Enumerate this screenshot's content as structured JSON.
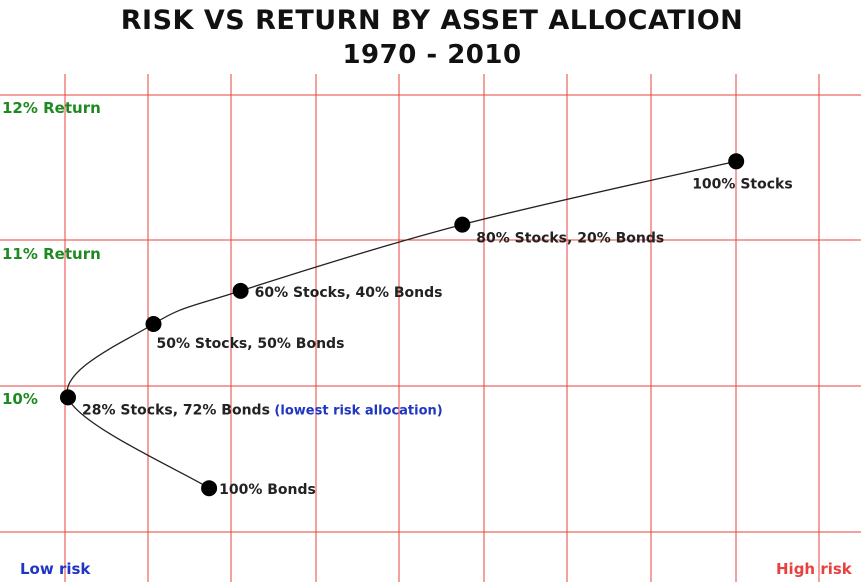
{
  "chart_data": {
    "type": "scatter",
    "title": "Risk vs Return By Asset Allocation",
    "title_display": "RISK VS RETURN BY ASSET ALLOCATION",
    "subtitle": "1970 - 2010",
    "xlabel": "",
    "ylabel": "",
    "x_axis_labels": {
      "low": "Low risk",
      "high": "High risk"
    },
    "y_tick_labels": [
      {
        "value": 12,
        "label": "12% Return"
      },
      {
        "value": 11,
        "label": "11% Return"
      },
      {
        "value": 10,
        "label": "10%"
      }
    ],
    "ylim": [
      9.05,
      12.33
    ],
    "xlim": [
      0.0,
      10.3
    ],
    "grid": true,
    "connecting_curve": true,
    "points": [
      {
        "label": "100% Bonds",
        "note": "",
        "x": 1.7,
        "y": 9.36
      },
      {
        "label": "28% Stocks, 72% Bonds",
        "note": "(lowest risk allocation)",
        "x": 0.0,
        "y": 9.99
      },
      {
        "label": "50% Stocks, 50% Bonds",
        "note": "",
        "x": 1.03,
        "y": 10.5
      },
      {
        "label": "60% Stocks, 40% Bonds",
        "note": "",
        "x": 2.08,
        "y": 10.73
      },
      {
        "label": "80% Stocks, 20% Bonds",
        "note": "",
        "x": 4.75,
        "y": 11.19
      },
      {
        "label": "100% Stocks",
        "note": "",
        "x": 8.05,
        "y": 11.63
      }
    ],
    "colors": {
      "grid": "#e8423f",
      "return_labels": "#1f8a22",
      "low_risk": "#1f35c4",
      "high_risk": "#e8423f",
      "note": "#1f35c4",
      "points": "#000000"
    }
  }
}
